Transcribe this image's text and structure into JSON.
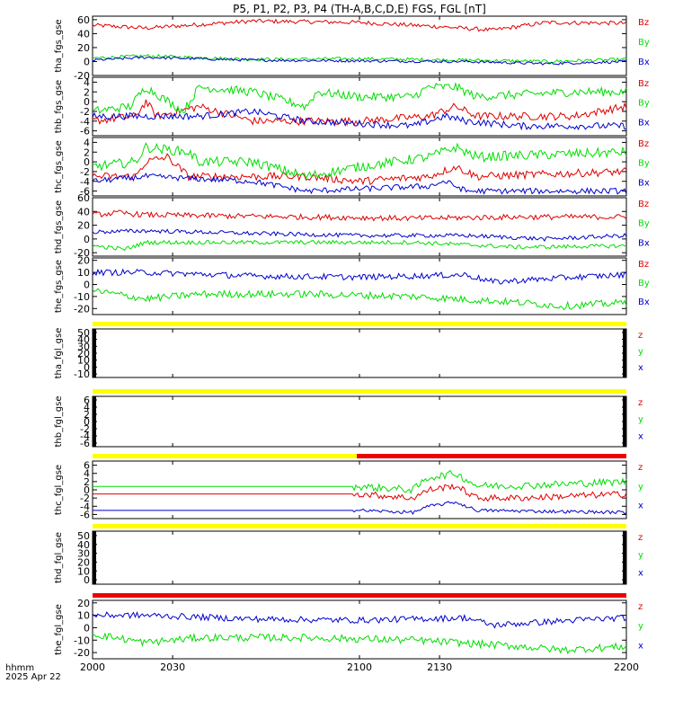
{
  "title": "P5, P1, P2, P3, P4 (TH-A,B,C,D,E) FGS, FGL [nT]",
  "colors": {
    "x": "#0000cc",
    "y": "#00dd00",
    "z": "#dd0000",
    "yellow": "#ffff00",
    "red": "#ee0000"
  },
  "footer": {
    "label1": "hhmm",
    "label2": "2025 Apr 22"
  },
  "chart_data": {
    "type": "line",
    "x_axis": {
      "min": 2000,
      "max": 2200,
      "ticks": [
        2000,
        2030,
        2100,
        2130,
        2200
      ]
    },
    "panels": [
      {
        "ylabel": "tha_fgs_gse",
        "yticks": [
          "60",
          "40",
          "20",
          "0",
          "-20"
        ],
        "ylim": [
          -20,
          65
        ],
        "legend": [
          "Bz",
          "By",
          "Bx"
        ],
        "series": [
          {
            "comp": "z",
            "name": "Bz",
            "start": 2000,
            "end": 2200,
            "base": [
              [
                0,
                52
              ],
              [
                0.1,
                48
              ],
              [
                0.3,
                58
              ],
              [
                0.5,
                56
              ],
              [
                0.65,
                50
              ],
              [
                0.75,
                45
              ],
              [
                0.85,
                56
              ],
              [
                1,
                55
              ]
            ],
            "noise": 3
          },
          {
            "comp": "y",
            "name": "By",
            "start": 2000,
            "end": 2200,
            "base": [
              [
                0,
                5
              ],
              [
                0.1,
                8
              ],
              [
                0.3,
                3
              ],
              [
                0.5,
                4
              ],
              [
                0.7,
                2
              ],
              [
                0.85,
                0
              ],
              [
                1,
                3
              ]
            ],
            "noise": 2.5
          },
          {
            "comp": "x",
            "name": "Bx",
            "start": 2000,
            "end": 2200,
            "base": [
              [
                0,
                2
              ],
              [
                0.1,
                6
              ],
              [
                0.3,
                2
              ],
              [
                0.5,
                1
              ],
              [
                0.7,
                0
              ],
              [
                0.85,
                -3
              ],
              [
                1,
                0
              ]
            ],
            "noise": 2
          }
        ]
      },
      {
        "ylabel": "thb_fgs_gse",
        "yticks": [
          "4",
          "2",
          "0",
          "-2",
          "-4",
          "-6"
        ],
        "ylim": [
          -7,
          5
        ],
        "legend": [
          "Bz",
          "By",
          "Bx"
        ],
        "series": [
          {
            "comp": "z",
            "name": "Bz",
            "start": 2000,
            "end": 2200,
            "base": [
              [
                0,
                -4
              ],
              [
                0.08,
                -3
              ],
              [
                0.1,
                0
              ],
              [
                0.12,
                -3
              ],
              [
                0.2,
                -1
              ],
              [
                0.3,
                -4
              ],
              [
                0.5,
                -4
              ],
              [
                0.63,
                -3
              ],
              [
                0.68,
                -1
              ],
              [
                0.72,
                -3
              ],
              [
                0.9,
                -3
              ],
              [
                1,
                -1
              ]
            ],
            "noise": 0.8
          },
          {
            "comp": "y",
            "name": "By",
            "start": 2000,
            "end": 2200,
            "base": [
              [
                0,
                -2
              ],
              [
                0.07,
                -1
              ],
              [
                0.1,
                3
              ],
              [
                0.17,
                -2
              ],
              [
                0.2,
                3
              ],
              [
                0.3,
                2
              ],
              [
                0.4,
                -1
              ],
              [
                0.42,
                2
              ],
              [
                0.5,
                1
              ],
              [
                0.6,
                1
              ],
              [
                0.63,
                3
              ],
              [
                0.68,
                3
              ],
              [
                0.72,
                1
              ],
              [
                0.9,
                2
              ],
              [
                1,
                2
              ]
            ],
            "noise": 0.9
          },
          {
            "comp": "x",
            "name": "Bx",
            "start": 2000,
            "end": 2200,
            "base": [
              [
                0,
                -3
              ],
              [
                0.1,
                -3
              ],
              [
                0.2,
                -3
              ],
              [
                0.3,
                -2
              ],
              [
                0.4,
                -4
              ],
              [
                0.6,
                -5
              ],
              [
                0.66,
                -3
              ],
              [
                0.7,
                -4
              ],
              [
                0.8,
                -5
              ],
              [
                1,
                -5
              ]
            ],
            "noise": 0.7
          }
        ]
      },
      {
        "ylabel": "thc_fgs_gse",
        "yticks": [
          "4",
          "2",
          "0",
          "-2",
          "-4",
          "-6"
        ],
        "ylim": [
          -7,
          5
        ],
        "legend": [
          "Bz",
          "By",
          "Bx"
        ],
        "series": [
          {
            "comp": "z",
            "name": "Bz",
            "start": 2000,
            "end": 2200,
            "base": [
              [
                0,
                -3
              ],
              [
                0.08,
                -3
              ],
              [
                0.1,
                0
              ],
              [
                0.14,
                1
              ],
              [
                0.18,
                -3
              ],
              [
                0.3,
                -3
              ],
              [
                0.4,
                -3
              ],
              [
                0.5,
                -4
              ],
              [
                0.63,
                -3
              ],
              [
                0.68,
                -1
              ],
              [
                0.72,
                -3
              ],
              [
                1,
                -2
              ]
            ],
            "noise": 0.8
          },
          {
            "comp": "y",
            "name": "By",
            "start": 2000,
            "end": 2200,
            "base": [
              [
                0,
                -1
              ],
              [
                0.08,
                0
              ],
              [
                0.1,
                3
              ],
              [
                0.18,
                2
              ],
              [
                0.2,
                0
              ],
              [
                0.3,
                0
              ],
              [
                0.4,
                -3
              ],
              [
                0.5,
                -1
              ],
              [
                0.63,
                1
              ],
              [
                0.68,
                3
              ],
              [
                0.72,
                1
              ],
              [
                1,
                2
              ]
            ],
            "noise": 1
          },
          {
            "comp": "x",
            "name": "Bx",
            "start": 2000,
            "end": 2200,
            "base": [
              [
                0,
                -4
              ],
              [
                0.1,
                -3
              ],
              [
                0.3,
                -4
              ],
              [
                0.4,
                -6
              ],
              [
                0.63,
                -5
              ],
              [
                0.66,
                -4
              ],
              [
                0.7,
                -6
              ],
              [
                1,
                -6
              ]
            ],
            "noise": 0.6
          }
        ]
      },
      {
        "ylabel": "thd_fgs_gse",
        "yticks": [
          "60",
          "40",
          "20",
          "0",
          "-20"
        ],
        "ylim": [
          -25,
          60
        ],
        "legend": [
          "Bz",
          "By",
          "Bx"
        ],
        "series": [
          {
            "comp": "z",
            "name": "Bz",
            "start": 2000,
            "end": 2200,
            "base": [
              [
                0,
                35
              ],
              [
                0.05,
                38
              ],
              [
                0.1,
                35
              ],
              [
                0.3,
                33
              ],
              [
                0.6,
                30
              ],
              [
                0.8,
                32
              ],
              [
                1,
                32
              ]
            ],
            "noise": 4
          },
          {
            "comp": "y",
            "name": "By",
            "start": 2000,
            "end": 2200,
            "base": [
              [
                0,
                -10
              ],
              [
                0.06,
                -15
              ],
              [
                0.1,
                -5
              ],
              [
                0.3,
                -5
              ],
              [
                0.6,
                -5
              ],
              [
                0.8,
                -12
              ],
              [
                1,
                -10
              ]
            ],
            "noise": 3
          },
          {
            "comp": "x",
            "name": "Bx",
            "start": 2000,
            "end": 2200,
            "base": [
              [
                0,
                10
              ],
              [
                0.1,
                12
              ],
              [
                0.3,
                8
              ],
              [
                0.5,
                5
              ],
              [
                0.7,
                5
              ],
              [
                0.85,
                0
              ],
              [
                1,
                5
              ]
            ],
            "noise": 3
          }
        ]
      },
      {
        "ylabel": "the_fgs_gse",
        "yticks": [
          "20",
          "10",
          "0",
          "-10",
          "-20"
        ],
        "ylim": [
          -25,
          22
        ],
        "legend": [
          "Bz",
          "By",
          "Bx"
        ],
        "series": [
          {
            "comp": "y",
            "name": "By",
            "start": 2000,
            "end": 2200,
            "base": [
              [
                0,
                -5
              ],
              [
                0.1,
                -12
              ],
              [
                0.2,
                -8
              ],
              [
                0.4,
                -8
              ],
              [
                0.6,
                -10
              ],
              [
                0.8,
                -15
              ],
              [
                0.88,
                -18
              ],
              [
                1,
                -15
              ]
            ],
            "noise": 3
          },
          {
            "comp": "x",
            "name": "Bx",
            "start": 2000,
            "end": 2200,
            "base": [
              [
                0,
                10
              ],
              [
                0.1,
                10
              ],
              [
                0.3,
                7
              ],
              [
                0.5,
                6
              ],
              [
                0.7,
                8
              ],
              [
                0.75,
                2
              ],
              [
                0.9,
                6
              ],
              [
                1,
                8
              ]
            ],
            "noise": 2.5
          }
        ]
      },
      {
        "ylabel": "tha_fgl_gse",
        "yticks": [
          "50",
          "40",
          "30",
          "20",
          "10",
          "0",
          "-10"
        ],
        "ylim": [
          -15,
          55
        ],
        "legend": [
          "z",
          "y",
          "x"
        ],
        "bar": "yellow",
        "series": []
      },
      {
        "ylabel": "thb_fgl_gse",
        "yticks": [
          "6",
          "4",
          "2",
          "0",
          "-2",
          "-4",
          "-6"
        ],
        "ylim": [
          -7,
          7
        ],
        "legend": [
          "z",
          "y",
          "x"
        ],
        "bar": "yellow",
        "series": []
      },
      {
        "ylabel": "thc_fgl_gse",
        "yticks": [
          "6",
          "4",
          "2",
          "0",
          "-2",
          "-4",
          "-6"
        ],
        "ylim": [
          -7,
          7
        ],
        "legend": [
          "z",
          "y",
          "x"
        ],
        "bar": "yellow-red",
        "bar_split": 2099,
        "series": [
          {
            "comp": "y",
            "name": "y",
            "start": 2000,
            "end": 2200,
            "base": [
              [
                0,
                0.8
              ],
              [
                0.49,
                0.8
              ],
              [
                0.5,
                0.8
              ],
              [
                0.6,
                0
              ],
              [
                0.63,
                3
              ],
              [
                0.68,
                4
              ],
              [
                0.72,
                1
              ],
              [
                0.8,
                1
              ],
              [
                1,
                2
              ]
            ],
            "noise": 0.9,
            "quiet_until": 0.49
          },
          {
            "comp": "z",
            "name": "z",
            "start": 2000,
            "end": 2200,
            "base": [
              [
                0,
                -1
              ],
              [
                0.49,
                -1
              ],
              [
                0.5,
                -1
              ],
              [
                0.6,
                -2
              ],
              [
                0.63,
                0
              ],
              [
                0.68,
                1
              ],
              [
                0.72,
                -2
              ],
              [
                0.8,
                -2
              ],
              [
                1,
                -1
              ]
            ],
            "noise": 0.8,
            "quiet_until": 0.49
          },
          {
            "comp": "x",
            "name": "x",
            "start": 2000,
            "end": 2200,
            "base": [
              [
                0,
                -5
              ],
              [
                0.49,
                -5
              ],
              [
                0.5,
                -5
              ],
              [
                0.6,
                -5.5
              ],
              [
                0.63,
                -4
              ],
              [
                0.68,
                -3
              ],
              [
                0.72,
                -5
              ],
              [
                1,
                -5.5
              ]
            ],
            "noise": 0.4,
            "quiet_until": 0.49
          }
        ]
      },
      {
        "ylabel": "thd_fgl_gse",
        "yticks": [
          "50",
          "40",
          "30",
          "20",
          "10",
          "0"
        ],
        "ylim": [
          -5,
          55
        ],
        "legend": [
          "z",
          "y",
          "x"
        ],
        "bar": "yellow",
        "series": []
      },
      {
        "ylabel": "the_fgl_gse",
        "yticks": [
          "20",
          "10",
          "0",
          "-10",
          "-20"
        ],
        "ylim": [
          -25,
          22
        ],
        "legend": [
          "z",
          "y",
          "x"
        ],
        "bar": "red",
        "series": [
          {
            "comp": "y",
            "name": "y",
            "start": 2000,
            "end": 2200,
            "base": [
              [
                0,
                -5
              ],
              [
                0.1,
                -12
              ],
              [
                0.2,
                -8
              ],
              [
                0.4,
                -8
              ],
              [
                0.6,
                -10
              ],
              [
                0.8,
                -15
              ],
              [
                0.88,
                -18
              ],
              [
                1,
                -15
              ]
            ],
            "noise": 3
          },
          {
            "comp": "x",
            "name": "x",
            "start": 2000,
            "end": 2200,
            "base": [
              [
                0,
                10
              ],
              [
                0.1,
                10
              ],
              [
                0.3,
                7
              ],
              [
                0.5,
                6
              ],
              [
                0.7,
                8
              ],
              [
                0.75,
                2
              ],
              [
                0.9,
                6
              ],
              [
                1,
                8
              ]
            ],
            "noise": 2.5
          }
        ]
      }
    ]
  }
}
